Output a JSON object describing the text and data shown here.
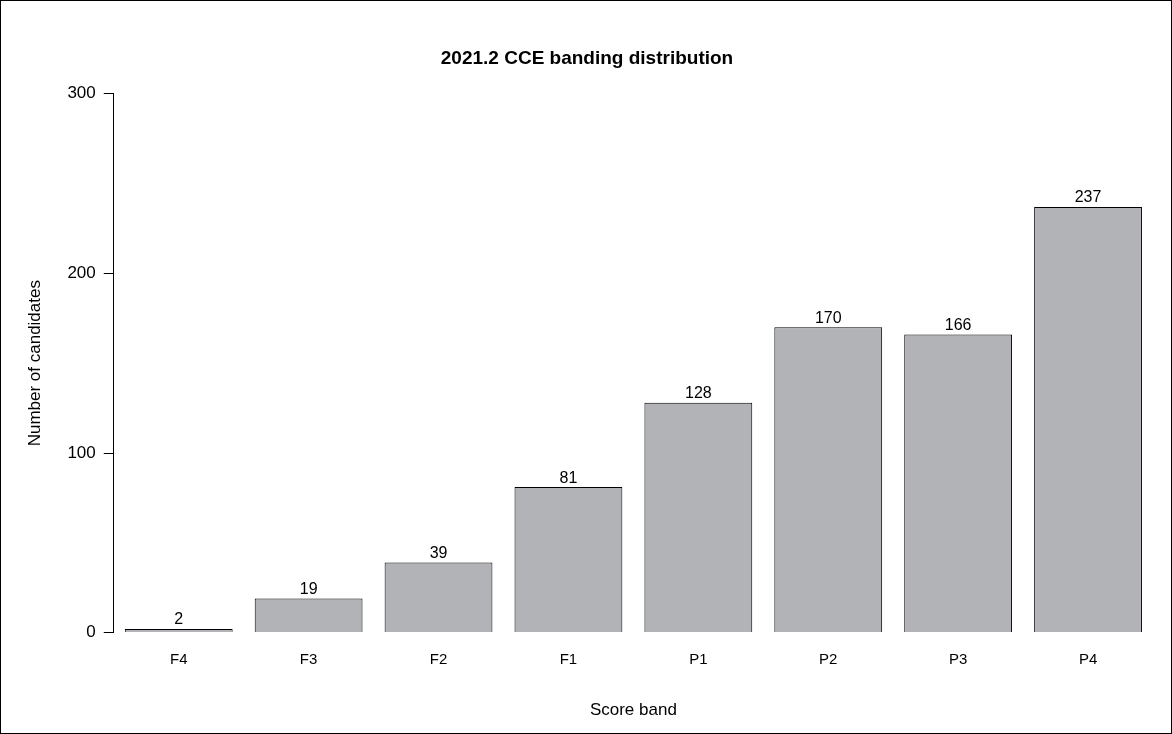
{
  "chart_data": {
    "type": "bar",
    "title": "2021.2 CCE banding distribution",
    "xlabel": "Score band",
    "ylabel": "Number of candidates",
    "categories": [
      "F4",
      "F3",
      "F2",
      "F1",
      "P1",
      "P2",
      "P3",
      "P4"
    ],
    "values": [
      2,
      19,
      39,
      81,
      128,
      170,
      166,
      237
    ],
    "color": "#b2b3b6",
    "ylim": [
      0,
      300
    ],
    "yticks": [
      0,
      100,
      200,
      300
    ],
    "grid": false,
    "legend": false,
    "data_labels": true
  }
}
